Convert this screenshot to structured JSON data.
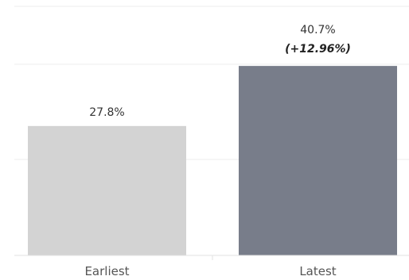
{
  "chart_data": {
    "type": "bar",
    "categories": [
      "Earliest",
      "Latest"
    ],
    "values": [
      27.8,
      40.7
    ],
    "value_labels": [
      "27.8%",
      "40.7%"
    ],
    "annotations": [
      "",
      "(+12.96%)"
    ],
    "colors": [
      "#d3d3d3",
      "#787d8a"
    ],
    "ylim": [
      0,
      53.5
    ],
    "grid": true,
    "title": "",
    "xlabel": "",
    "ylabel": ""
  }
}
